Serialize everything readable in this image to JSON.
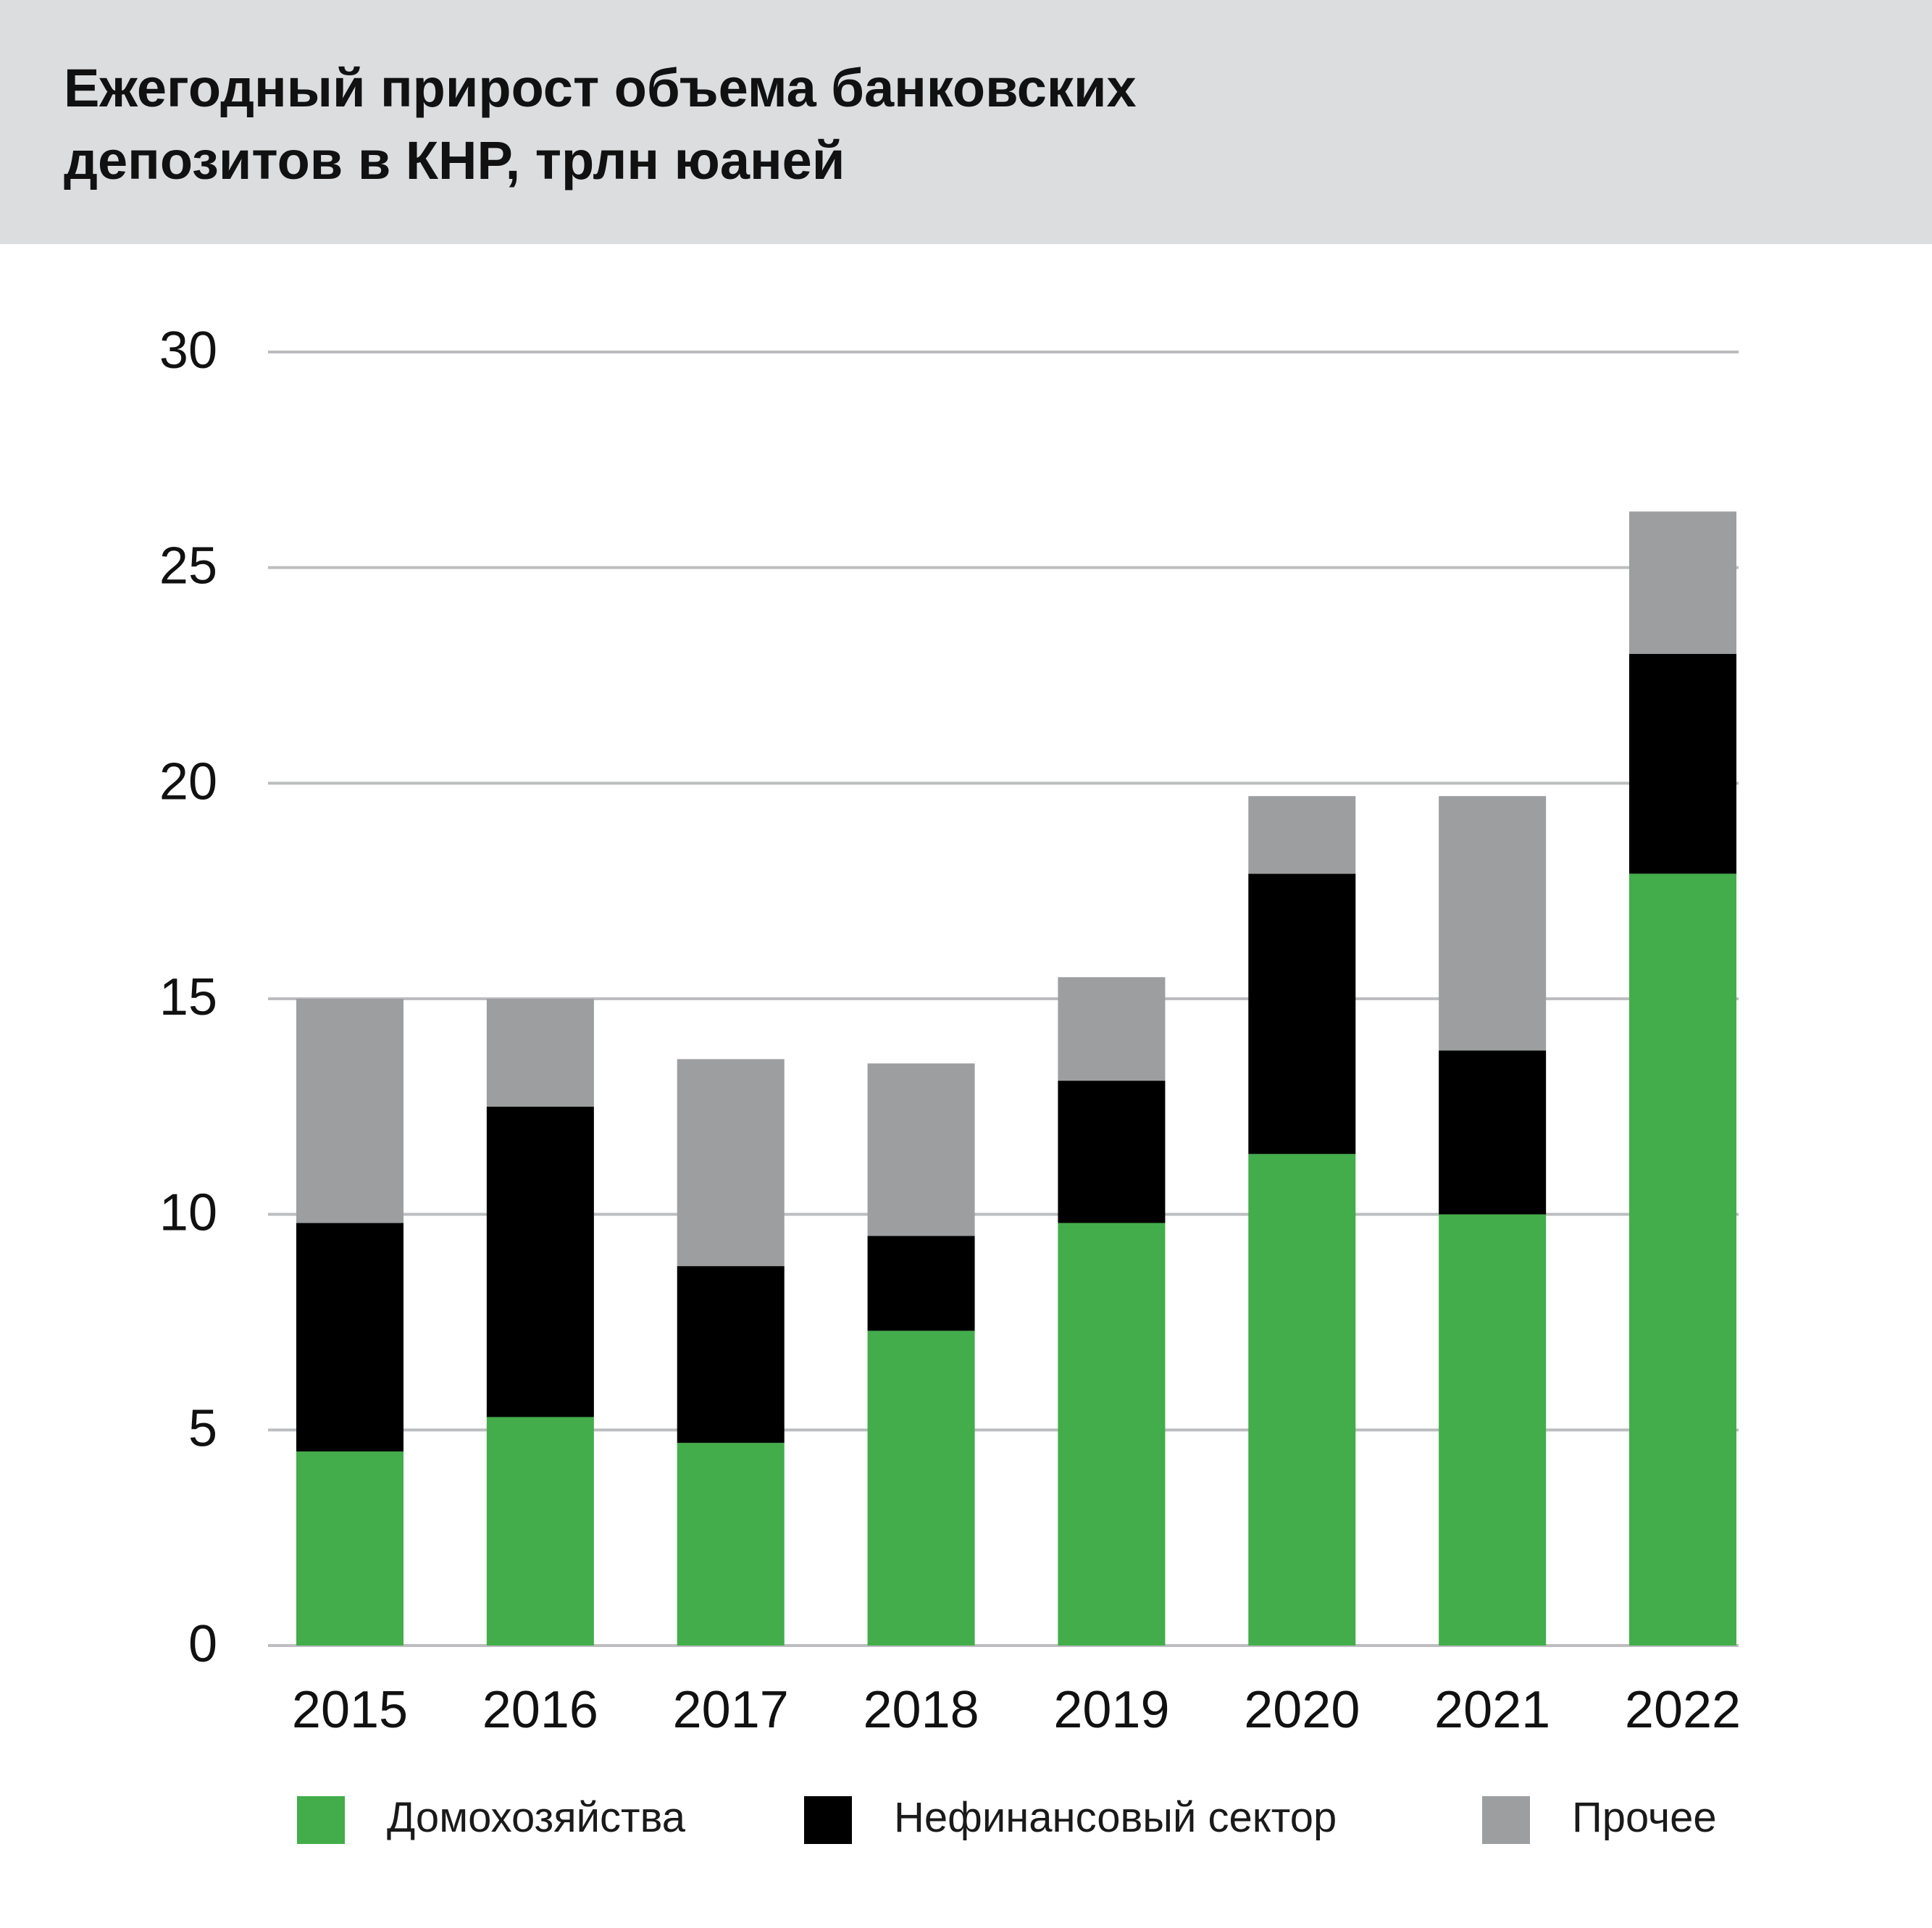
{
  "title_lines": [
    "Ежегодный прирост объема банковских",
    "депозитов в КНР, трлн юаней"
  ],
  "chart_data": {
    "type": "bar",
    "stacked": true,
    "title": "Ежегодный прирост объема банковских депозитов в КНР, трлн юаней",
    "categories": [
      "2015",
      "2016",
      "2017",
      "2018",
      "2019",
      "2020",
      "2021",
      "2022"
    ],
    "series": [
      {
        "name": "Домохозяйства",
        "color": "#42ad4a",
        "values": [
          4.5,
          5.3,
          4.7,
          7.3,
          9.8,
          11.4,
          10.0,
          17.9
        ]
      },
      {
        "name": "Нефинансовый сектор",
        "color": "#000000",
        "values": [
          5.3,
          7.2,
          4.1,
          2.2,
          3.3,
          6.5,
          3.8,
          5.1
        ]
      },
      {
        "name": "Прочее",
        "color": "#9d9e9f",
        "values": [
          5.2,
          2.5,
          4.8,
          4.0,
          2.4,
          1.8,
          5.9,
          3.3
        ]
      }
    ],
    "ylim": [
      0,
      30
    ],
    "yticks": [
      0,
      5,
      10,
      15,
      20,
      25,
      30
    ],
    "grid": true,
    "legend": "bottom"
  }
}
